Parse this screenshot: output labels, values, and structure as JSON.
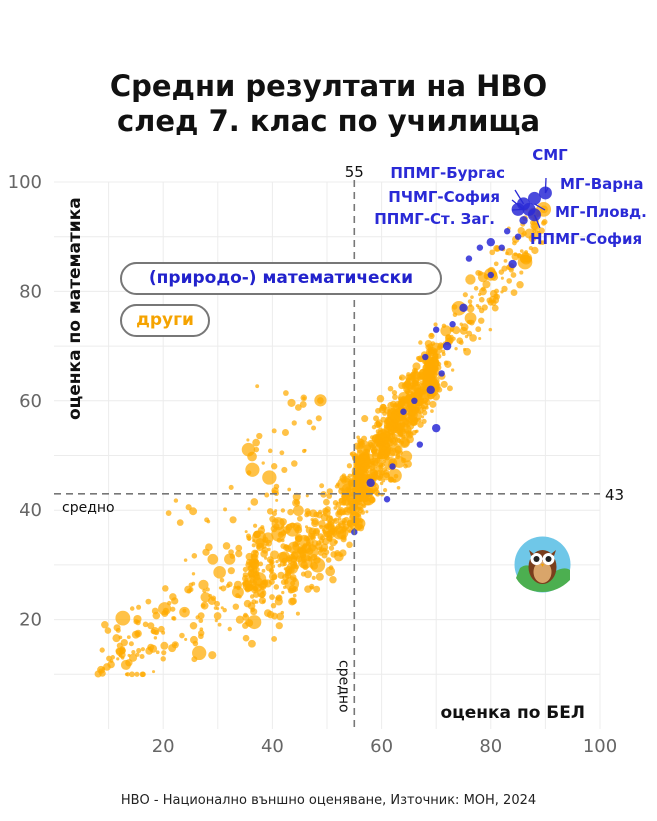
{
  "title": {
    "line1": "Средни резултати на НВО",
    "line2": "след 7. клас по училища"
  },
  "footer": "НВО - Национално външно оценяване, Източник: МОН, 2024",
  "legend": {
    "math": "(природо-) математически",
    "other": "други"
  },
  "colors": {
    "math": "#2a2ad6",
    "other": "#ffaa00",
    "grid": "#ececec",
    "refline": "#777777"
  },
  "chart_data": {
    "type": "scatter",
    "xlabel": "оценка по БЕЛ",
    "ylabel": "оценка по математика",
    "xlim": [
      0,
      100
    ],
    "ylim": [
      0,
      100
    ],
    "xticks": [
      "20",
      "40",
      "60",
      "80",
      "100"
    ],
    "yticks": [
      "20",
      "40",
      "60",
      "80",
      "100"
    ],
    "grid": true,
    "ref_x": {
      "value": 55,
      "label": "55",
      "avg_label": "средно"
    },
    "ref_y": {
      "value": 43,
      "label": "43",
      "avg_label": "средно"
    },
    "series": [
      {
        "name": "(природо-) математически",
        "color": "#2a2ad6",
        "points": [
          [
            90,
            98
          ],
          [
            88,
            97
          ],
          [
            86,
            96
          ],
          [
            85,
            95
          ],
          [
            87,
            95
          ],
          [
            88,
            94
          ],
          [
            86,
            93
          ],
          [
            83,
            91
          ],
          [
            85,
            90
          ],
          [
            80,
            89
          ],
          [
            82,
            88
          ],
          [
            78,
            88
          ],
          [
            84,
            85
          ],
          [
            76,
            86
          ],
          [
            80,
            83
          ],
          [
            75,
            77
          ],
          [
            73,
            74
          ],
          [
            70,
            73
          ],
          [
            72,
            70
          ],
          [
            68,
            68
          ],
          [
            71,
            65
          ],
          [
            69,
            62
          ],
          [
            66,
            60
          ],
          [
            64,
            58
          ],
          [
            70,
            55
          ],
          [
            67,
            52
          ],
          [
            62,
            48
          ],
          [
            58,
            45
          ],
          [
            61,
            42
          ],
          [
            55,
            36
          ]
        ]
      },
      {
        "name": "други",
        "color": "#ffaa00",
        "points": "many points along trend from (8,12) to (90,95)"
      }
    ],
    "annotations": [
      {
        "text": "СМГ",
        "x": 90,
        "y": 98
      },
      {
        "text": "МГ-Варна",
        "x": 90,
        "y": 98
      },
      {
        "text": "МГ-Пловд.",
        "x": 88,
        "y": 96
      },
      {
        "text": "НПМГ-София",
        "x": 88,
        "y": 94
      },
      {
        "text": "ППМГ-Бургас",
        "x": 86,
        "y": 96
      },
      {
        "text": "ПЧМГ-София",
        "x": 86,
        "y": 95
      },
      {
        "text": "ППМГ-Ст. Заг.",
        "x": 86,
        "y": 95
      }
    ]
  }
}
